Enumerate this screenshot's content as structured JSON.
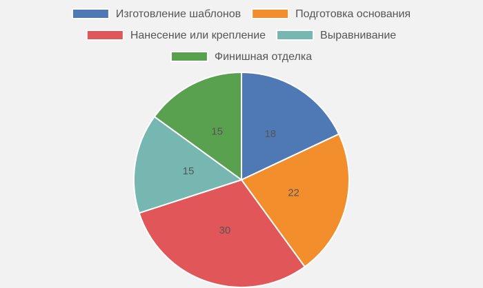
{
  "chart_data": {
    "type": "pie",
    "categories": [
      "Изготовление шаблонов",
      "Подготовка основания",
      "Нанесение или крепление",
      "Выравнивание",
      "Финишная отделка"
    ],
    "values": [
      18,
      22,
      30,
      15,
      15
    ],
    "colors": [
      "#4e79b4",
      "#f28e2b",
      "#e15759",
      "#76b7b2",
      "#59a14f"
    ],
    "legend": "top"
  }
}
